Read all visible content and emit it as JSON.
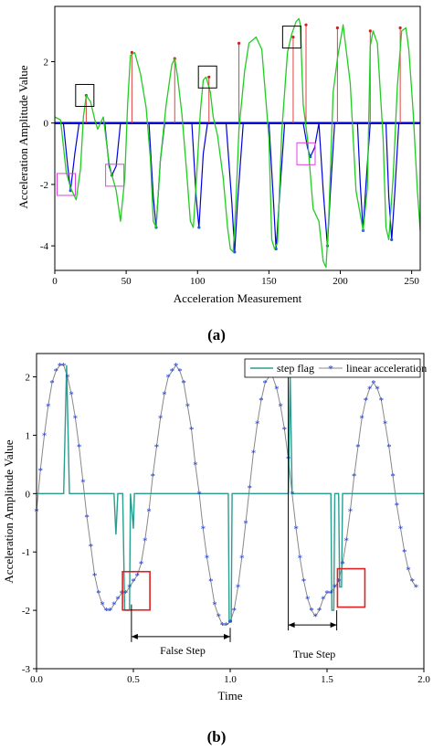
{
  "chart_data": [
    {
      "panel": "(a)",
      "type": "line",
      "xlabel": "Acceleration Measurement",
      "ylabel": "Acceleration Amplitude Value",
      "xlim": [
        0,
        256
      ],
      "ylim": [
        -4.8,
        3.8
      ],
      "xticks": [
        0,
        50,
        100,
        150,
        200,
        250
      ],
      "yticks": [
        -4,
        -2,
        0,
        2
      ],
      "grid": false,
      "series": [
        {
          "color": "#22cc22",
          "x": [
            0,
            4,
            8,
            11,
            15,
            18,
            20,
            22,
            25,
            28,
            30,
            34,
            38,
            40,
            43,
            46,
            49,
            51,
            53,
            56,
            60,
            64,
            67,
            69,
            71,
            74,
            78,
            82,
            84,
            86,
            89,
            92,
            95,
            97,
            99,
            102,
            104,
            106,
            109,
            111,
            114,
            118,
            121,
            123,
            125,
            127,
            129,
            133,
            136,
            141,
            145,
            150,
            152,
            154,
            156,
            159,
            163,
            166,
            169,
            171,
            172,
            174,
            177,
            181,
            185,
            188,
            190,
            192,
            195,
            198,
            202,
            207,
            211,
            216,
            219,
            221,
            223,
            226,
            230,
            232,
            234,
            237,
            240,
            243,
            246,
            248,
            251,
            254,
            256
          ],
          "y": [
            0.2,
            0.1,
            -1.6,
            -2.1,
            -2.5,
            -1.5,
            0.2,
            0.9,
            0.7,
            0.1,
            -0.2,
            0.2,
            -1.3,
            -1.7,
            -2.2,
            -3.2,
            -1.8,
            0.6,
            2.2,
            2.3,
            1.6,
            0.5,
            -1.2,
            -3.2,
            -3.4,
            -1.2,
            0.6,
            1.9,
            2.1,
            1.5,
            0.3,
            -1.4,
            -3.2,
            -3.4,
            -2.0,
            0.4,
            1.4,
            1.5,
            1.0,
            0.2,
            -0.4,
            -1.8,
            -3.4,
            -4.1,
            -4.2,
            -2.5,
            -0.2,
            1.7,
            2.6,
            2.8,
            2.4,
            -0.5,
            -3.8,
            -4.1,
            -3.9,
            -0.3,
            2.3,
            2.9,
            3.3,
            3.4,
            3.2,
            0.6,
            -0.5,
            -2.8,
            -3.2,
            -4.5,
            -4.7,
            -3.0,
            1.0,
            2.1,
            3.2,
            1.3,
            -2.2,
            -3.5,
            -2.1,
            2.5,
            3.0,
            2.6,
            -0.5,
            -3.4,
            -3.8,
            -1.8,
            1.2,
            3.0,
            3.1,
            2.4,
            0.4,
            -2.2,
            -3.5
          ]
        },
        {
          "color": "#0000dd",
          "x": [
            0,
            6,
            9,
            11,
            14,
            17,
            35,
            38,
            40,
            43,
            46,
            66,
            69,
            71,
            74,
            77,
            96,
            99,
            101,
            104,
            107,
            120,
            124,
            126,
            128,
            132,
            150,
            153,
            155,
            158,
            161,
            174,
            177,
            179,
            182,
            185,
            188,
            191,
            193,
            196,
            199,
            212,
            214,
            216,
            218,
            221,
            232,
            234,
            236,
            238,
            241,
            256
          ],
          "y": [
            0,
            0,
            -1.4,
            -2.2,
            -1.0,
            0,
            0,
            -1.4,
            -1.7,
            -1.4,
            0,
            0,
            -2.4,
            -3.4,
            -1.2,
            0,
            0,
            -2.4,
            -3.4,
            -1.0,
            0,
            0,
            -2.6,
            -4.2,
            -2.6,
            0,
            0,
            -2.4,
            -4.1,
            -2.0,
            0,
            0,
            -0.8,
            -1.1,
            -0.8,
            0,
            -2.2,
            -4.0,
            -2.3,
            0,
            0,
            0,
            -2.0,
            -3.5,
            -2.0,
            0,
            0,
            -2.4,
            -3.8,
            -2.4,
            0,
            0
          ]
        },
        {
          "color": "#e02020",
          "x": [
            22,
            54,
            84,
            108,
            129,
            167,
            176,
            198,
            221,
            242
          ],
          "y": [
            0.9,
            2.3,
            2.1,
            1.5,
            2.6,
            2.8,
            3.2,
            3.1,
            3.0,
            3.1
          ]
        }
      ],
      "annotations": {
        "black_boxes": [
          {
            "x": 21,
            "y": 0.9
          },
          {
            "x": 107,
            "y": 1.5
          },
          {
            "x": 166,
            "y": 2.8
          }
        ],
        "magenta_boxes": [
          {
            "x": 8,
            "y": -2.0
          },
          {
            "x": 42,
            "y": -1.7
          },
          {
            "x": 176,
            "y": -1.0
          }
        ]
      }
    },
    {
      "panel": "(b)",
      "type": "line",
      "xlabel": "Time",
      "ylabel": "Acceleration Amplitude Value",
      "xlim": [
        0,
        2.0
      ],
      "ylim": [
        -3,
        2.4
      ],
      "xticks": [
        0.0,
        0.5,
        1.0,
        1.5,
        2.0
      ],
      "yticks": [
        -3,
        -2,
        -1,
        0,
        1,
        2
      ],
      "grid": false,
      "legend": {
        "position": "top-right",
        "entries": [
          "step flag",
          "linear acceleration"
        ]
      },
      "series": [
        {
          "name": "step flag",
          "color": "#2a9d8f",
          "x": [
            0,
            0.14,
            0.155,
            0.17,
            0.4,
            0.41,
            0.42,
            0.445,
            0.455,
            0.48,
            0.485,
            0.5,
            0.505,
            0.99,
            0.995,
            1.0,
            1.005,
            1.01,
            1.3,
            1.31,
            1.32,
            1.52,
            1.525,
            1.53,
            1.535,
            1.54,
            1.56,
            1.565,
            1.57,
            1.575,
            1.58,
            2.0
          ],
          "y": [
            0,
            0,
            2.2,
            0,
            0,
            -0.7,
            0,
            0,
            -2.0,
            -2.0,
            0,
            -0.6,
            0,
            0,
            -2.2,
            -2.2,
            -2.2,
            0,
            0,
            2.0,
            0,
            0,
            -2.0,
            -2.0,
            -2.0,
            0,
            0,
            -1.6,
            -1.6,
            -1.6,
            0,
            0
          ]
        },
        {
          "name": "linear acceleration",
          "color": "#1a3ad8",
          "x": [
            0.0,
            0.02,
            0.04,
            0.06,
            0.08,
            0.1,
            0.12,
            0.14,
            0.16,
            0.18,
            0.2,
            0.22,
            0.24,
            0.26,
            0.28,
            0.3,
            0.32,
            0.34,
            0.36,
            0.38,
            0.4,
            0.42,
            0.44,
            0.46,
            0.48,
            0.5,
            0.52,
            0.54,
            0.56,
            0.58,
            0.6,
            0.62,
            0.64,
            0.66,
            0.68,
            0.7,
            0.72,
            0.74,
            0.76,
            0.78,
            0.8,
            0.82,
            0.84,
            0.86,
            0.88,
            0.9,
            0.92,
            0.94,
            0.96,
            0.98,
            1.0,
            1.02,
            1.04,
            1.06,
            1.08,
            1.1,
            1.12,
            1.14,
            1.16,
            1.18,
            1.2,
            1.22,
            1.24,
            1.26,
            1.28,
            1.3,
            1.32,
            1.34,
            1.36,
            1.38,
            1.4,
            1.42,
            1.44,
            1.46,
            1.48,
            1.5,
            1.52,
            1.54,
            1.56,
            1.58,
            1.6,
            1.62,
            1.64,
            1.66,
            1.68,
            1.7,
            1.72,
            1.74,
            1.76,
            1.78,
            1.8,
            1.82,
            1.84,
            1.86,
            1.88,
            1.9,
            1.92,
            1.94,
            1.96
          ],
          "y": [
            -0.3,
            0.4,
            1.0,
            1.5,
            1.9,
            2.1,
            2.2,
            2.2,
            2.0,
            1.7,
            1.3,
            0.8,
            0.2,
            -0.4,
            -0.9,
            -1.4,
            -1.7,
            -1.9,
            -2.0,
            -2.0,
            -1.9,
            -1.8,
            -1.7,
            -1.7,
            -1.6,
            -1.5,
            -1.4,
            -1.2,
            -0.8,
            -0.3,
            0.3,
            0.8,
            1.3,
            1.7,
            2.0,
            2.1,
            2.2,
            2.1,
            1.9,
            1.5,
            1.1,
            0.5,
            0.0,
            -0.6,
            -1.1,
            -1.5,
            -1.9,
            -2.1,
            -2.25,
            -2.25,
            -2.2,
            -2.0,
            -1.6,
            -1.1,
            -0.5,
            0.1,
            0.7,
            1.2,
            1.6,
            1.9,
            2.0,
            2.0,
            1.8,
            1.5,
            1.1,
            0.6,
            0.0,
            -0.6,
            -1.1,
            -1.5,
            -1.8,
            -2.0,
            -2.1,
            -2.0,
            -1.8,
            -1.7,
            -1.7,
            -1.6,
            -1.5,
            -1.2,
            -0.8,
            -0.3,
            0.3,
            0.8,
            1.3,
            1.6,
            1.8,
            1.9,
            1.8,
            1.6,
            1.2,
            0.8,
            0.3,
            -0.2,
            -0.6,
            -1.0,
            -1.3,
            -1.5,
            -1.6
          ]
        }
      ],
      "annotations": {
        "red_boxes": [
          {
            "x": 0.51,
            "y": -1.65
          },
          {
            "x": 1.62,
            "y": -1.6
          }
        ],
        "false_step": {
          "label": "False Step",
          "x1": 0.49,
          "x2": 1.0,
          "y": -2.45
        },
        "true_step": {
          "label": "True Step",
          "x1": 1.3,
          "x2": 1.55,
          "y": -2.25
        }
      }
    }
  ]
}
